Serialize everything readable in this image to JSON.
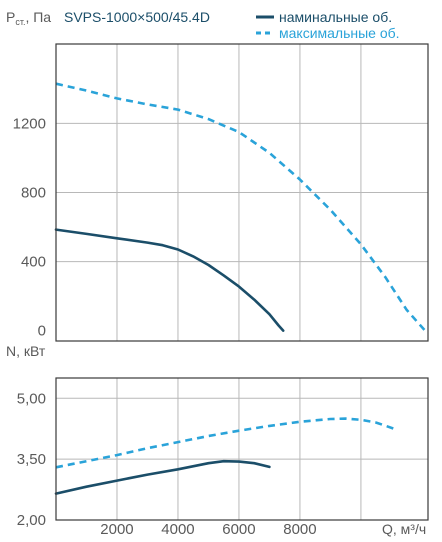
{
  "chart_data": [
    {
      "type": "line",
      "title": "SVPS-1000×500/45.4D",
      "ylabel": "P",
      "ylabel_sub": "ст.",
      "ylabel_unit": ", Па",
      "xlim": [
        0,
        12200
      ],
      "ylim": [
        -60,
        1660
      ],
      "y_ticks": [
        0,
        400,
        800,
        1200
      ],
      "x_grid": [
        2000,
        4000,
        6000,
        8000,
        10000
      ],
      "grid": true,
      "legend_position": "top-right",
      "series": [
        {
          "name": "наминальные об.",
          "color": "#1b4e69",
          "dash": false,
          "x": [
            0,
            1000,
            2000,
            3000,
            3500,
            4000,
            4500,
            5000,
            5500,
            6000,
            6500,
            7000,
            7300,
            7450
          ],
          "y": [
            585,
            560,
            535,
            510,
            495,
            470,
            430,
            380,
            320,
            255,
            180,
            95,
            30,
            0
          ]
        },
        {
          "name": "максимальные об.",
          "color": "#2aa3d9",
          "dash": true,
          "x": [
            0,
            1000,
            2000,
            3000,
            4000,
            5000,
            6000,
            7000,
            8000,
            9000,
            10000,
            10800,
            11500,
            12100
          ],
          "y": [
            1430,
            1390,
            1345,
            1310,
            1280,
            1225,
            1150,
            1030,
            875,
            700,
            500,
            310,
            120,
            0
          ]
        }
      ]
    },
    {
      "type": "line",
      "ylabel": "N, кВт",
      "xlabel": "Q, м³/ч",
      "xlim": [
        0,
        12200
      ],
      "ylim": [
        2.0,
        5.5
      ],
      "y_ticks": [
        "5,00",
        "3,50",
        "2,00"
      ],
      "y_tick_values": [
        5.0,
        3.5,
        2.0
      ],
      "x_ticks": [
        "2000",
        "4000",
        "6000",
        "8000"
      ],
      "x_tick_values": [
        2000,
        4000,
        6000,
        8000
      ],
      "x_grid": [
        2000,
        4000,
        6000,
        8000,
        10000
      ],
      "grid": true,
      "series": [
        {
          "name": "наминальные об.",
          "color": "#1b4e69",
          "dash": false,
          "x": [
            0,
            1000,
            2000,
            3000,
            4000,
            5000,
            5500,
            6000,
            6500,
            7000
          ],
          "y": [
            2.65,
            2.82,
            2.97,
            3.12,
            3.25,
            3.4,
            3.45,
            3.44,
            3.4,
            3.31
          ]
        },
        {
          "name": "максимальные об.",
          "color": "#2aa3d9",
          "dash": true,
          "x": [
            0,
            1000,
            2000,
            3000,
            4000,
            5000,
            6000,
            7000,
            8000,
            9000,
            9500,
            10000,
            10500,
            11200
          ],
          "y": [
            3.3,
            3.45,
            3.6,
            3.77,
            3.92,
            4.07,
            4.2,
            4.32,
            4.42,
            4.49,
            4.5,
            4.47,
            4.4,
            4.22
          ]
        }
      ]
    }
  ]
}
